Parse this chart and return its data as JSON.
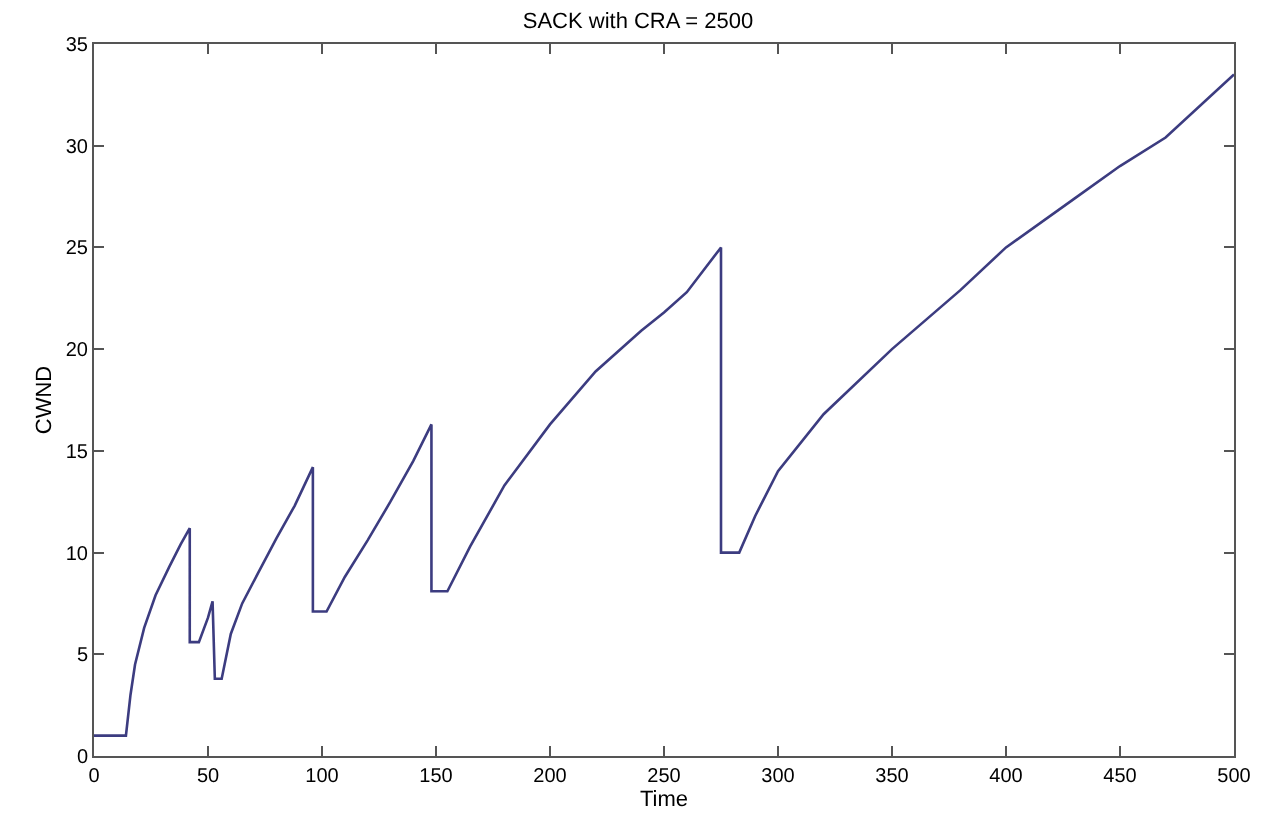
{
  "chart_data": {
    "type": "line",
    "title": "SACK with CRA = 2500",
    "xlabel": "Time",
    "ylabel": "CWND",
    "x": [
      0,
      14,
      16,
      18,
      22,
      27,
      33,
      38,
      42,
      42,
      46,
      50,
      52,
      53,
      56,
      60,
      65,
      72,
      80,
      88,
      96,
      96,
      102,
      110,
      120,
      130,
      140,
      148,
      148,
      155,
      165,
      180,
      200,
      220,
      240,
      250,
      260,
      275,
      275,
      283,
      290,
      300,
      320,
      350,
      380,
      400,
      430,
      450,
      470,
      500
    ],
    "series": [
      {
        "color": "#3c3c80",
        "values": [
          1,
          1,
          3,
          4.5,
          6.3,
          7.9,
          9.3,
          10.4,
          11.2,
          5.6,
          5.6,
          6.8,
          7.6,
          3.8,
          3.8,
          6,
          7.5,
          9,
          10.7,
          12.3,
          14.2,
          7.1,
          7.1,
          8.8,
          10.6,
          12.5,
          14.5,
          16.3,
          8.1,
          8.1,
          10.3,
          13.3,
          16.3,
          18.9,
          20.9,
          21.8,
          22.8,
          25,
          10,
          10,
          11.8,
          14,
          16.8,
          20,
          22.9,
          25,
          27.4,
          29,
          30.4,
          33.5
        ]
      }
    ],
    "xlim": [
      0,
      500
    ],
    "ylim": [
      0,
      35
    ],
    "xticks": [
      0,
      50,
      100,
      150,
      200,
      250,
      300,
      350,
      400,
      450,
      500
    ],
    "yticks": [
      0,
      5,
      10,
      15,
      20,
      25,
      30,
      35
    ],
    "marker": "none",
    "line_style": "solid"
  }
}
